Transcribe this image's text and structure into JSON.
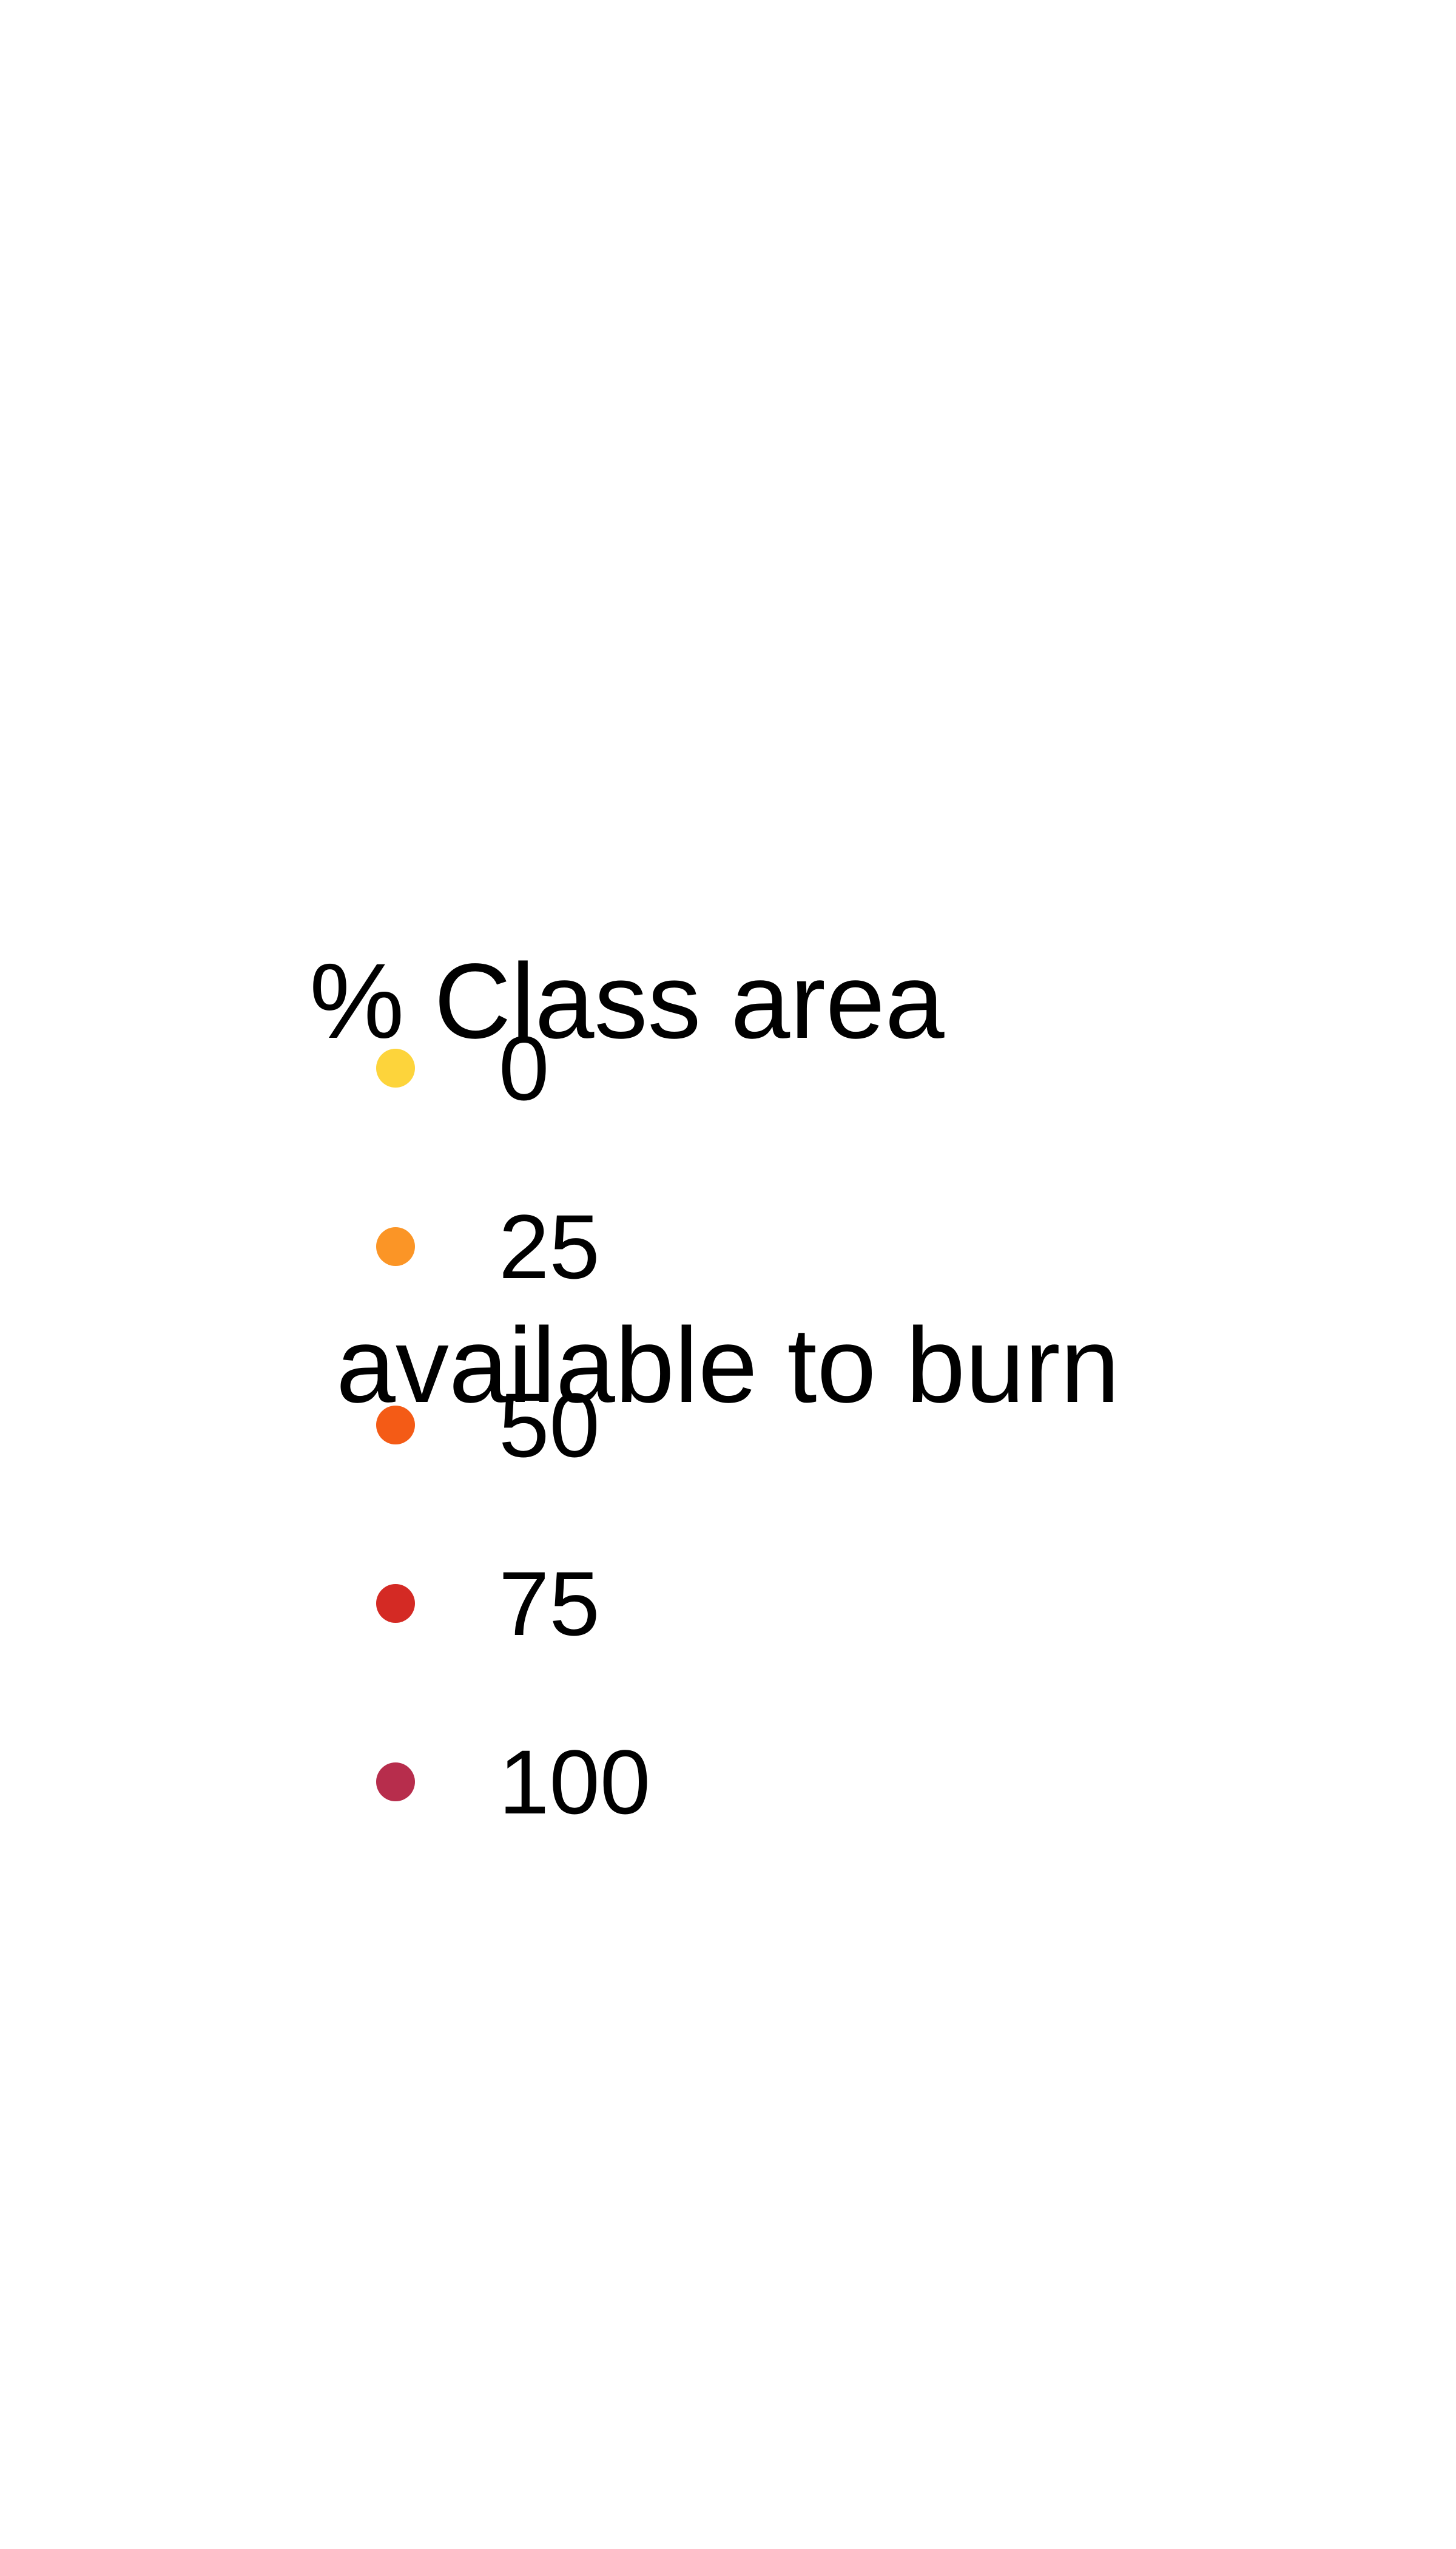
{
  "chart_data": {
    "type": "legend",
    "title": "% Class area\n available to burn",
    "title_lines": [
      "% Class area",
      "available to burn"
    ],
    "legend_entries": [
      {
        "label": "0",
        "value": 0,
        "color": "#fdd43b"
      },
      {
        "label": "25",
        "value": 25,
        "color": "#fb9526"
      },
      {
        "label": "50",
        "value": 50,
        "color": "#f45b16"
      },
      {
        "label": "75",
        "value": 75,
        "color": "#d42a24"
      },
      {
        "label": "100",
        "value": 100,
        "color": "#b72d4c"
      }
    ]
  }
}
